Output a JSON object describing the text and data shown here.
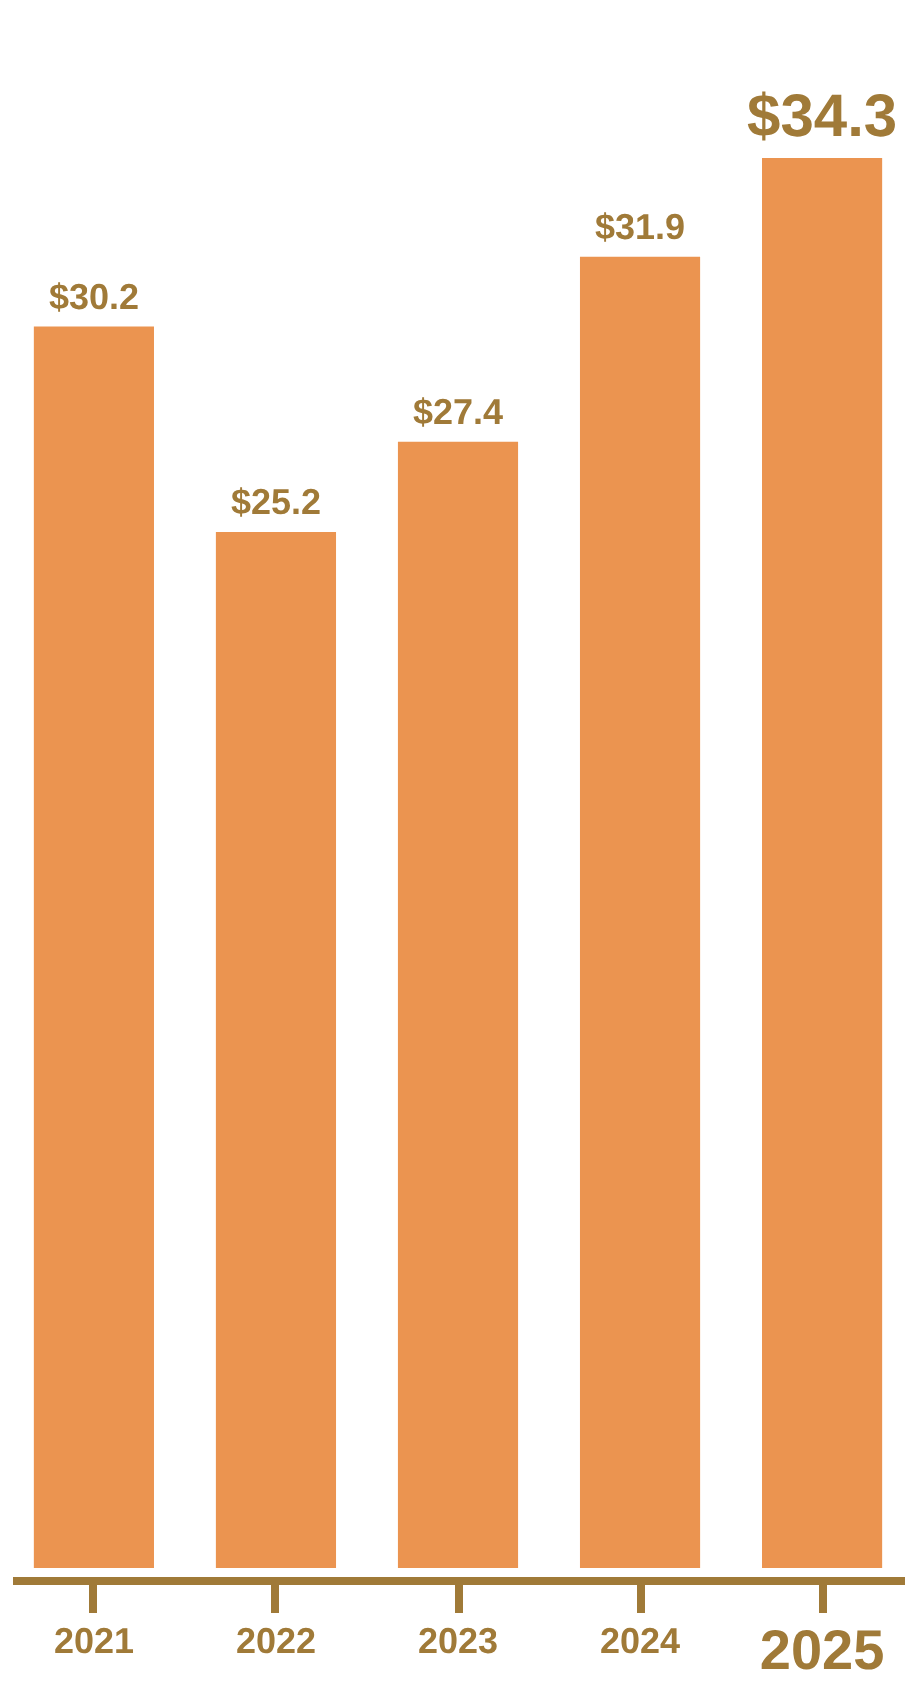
{
  "chart_data": {
    "type": "bar",
    "categories": [
      "2021",
      "2022",
      "2023",
      "2024",
      "2025"
    ],
    "values": [
      30.2,
      25.2,
      27.4,
      31.9,
      34.3
    ],
    "value_labels": [
      "$30.2",
      "$25.2",
      "$27.4",
      "$31.9",
      "$34.3"
    ],
    "color": "#eb9450",
    "grid": false,
    "tick_labels": "x"
  }
}
